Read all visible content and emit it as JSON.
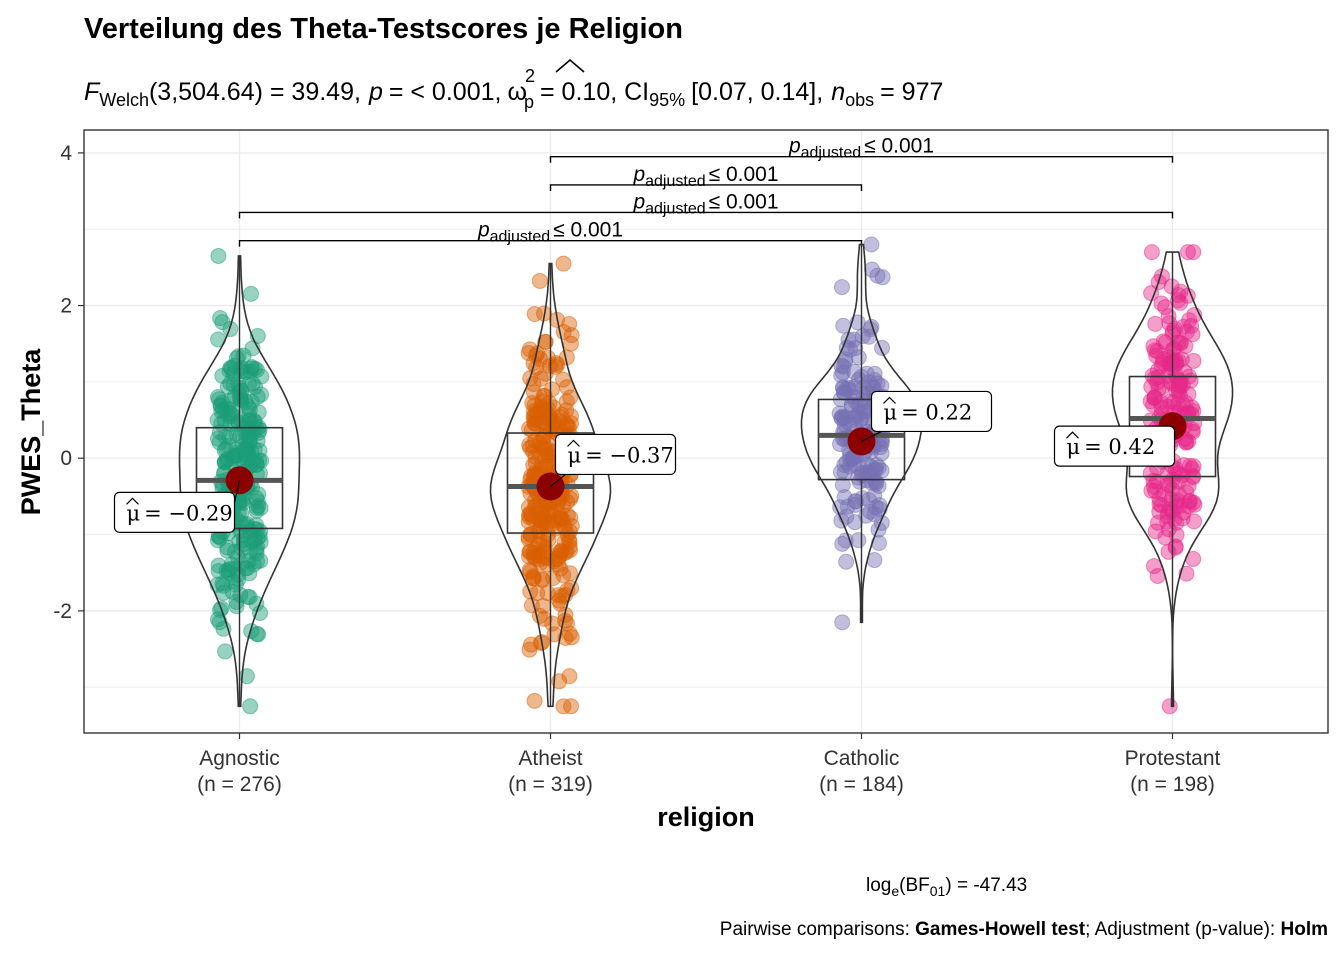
{
  "chart_data": {
    "type": "violin-box-scatter",
    "title": "Verteilung des Theta-Testscores je Religion",
    "subtitle": {
      "test_symbol": "F",
      "test_sub": "Welch",
      "stat": "(3,504.64) = 39.49,",
      "p_symbol": "p",
      "p_text": "= < 0.001,",
      "effect_symbol": "ω",
      "effect_sup": "2",
      "effect_sub": "p",
      "effect_text": "= 0.10, CI",
      "ci_sub": "95%",
      "ci_text": "[0.07, 0.14],",
      "n_symbol": "n",
      "n_sub": "obs",
      "n_text": "= 977"
    },
    "xlabel": "religion",
    "ylabel": "PWES_Theta",
    "ylim": [
      -3.6,
      4.3
    ],
    "yticks": [
      "4",
      "2",
      "0",
      "-2"
    ],
    "yticks_values": [
      4,
      2,
      0,
      -2
    ],
    "grid": true,
    "groups": [
      {
        "name": "Agnostic",
        "n_label": "(n = 276)",
        "color": "#1B9E77",
        "mean": -0.29,
        "mean_label": "= −0.29",
        "q1": -0.92,
        "median": -0.29,
        "q3": 0.4,
        "min": -3.25,
        "max": 2.65
      },
      {
        "name": "Atheist",
        "n_label": "(n = 319)",
        "color": "#D95F02",
        "mean": -0.37,
        "mean_label": "= −0.37",
        "q1": -0.98,
        "median": -0.37,
        "q3": 0.33,
        "min": -3.25,
        "max": 2.55
      },
      {
        "name": "Catholic",
        "n_label": "(n = 184)",
        "color": "#7570B3",
        "mean": 0.22,
        "mean_label": "= 0.22",
        "q1": -0.28,
        "median": 0.3,
        "q3": 0.77,
        "min": -2.15,
        "max": 2.8
      },
      {
        "name": "Protestant",
        "n_label": "(n = 198)",
        "color": "#E7298A",
        "mean": 0.42,
        "mean_label": "= 0.42",
        "q1": -0.24,
        "median": 0.52,
        "q3": 1.07,
        "min": -3.25,
        "max": 2.7
      }
    ],
    "comparisons": [
      {
        "from": "Agnostic",
        "to": "Catholic",
        "p_symbol": "p",
        "p_sub": "adjusted",
        "p_text": "≤ 0.001",
        "y": 2.85
      },
      {
        "from": "Agnostic",
        "to": "Protestant",
        "p_symbol": "p",
        "p_sub": "adjusted",
        "p_text": "≤ 0.001",
        "y": 3.22
      },
      {
        "from": "Atheist",
        "to": "Catholic",
        "p_symbol": "p",
        "p_sub": "adjusted",
        "p_text": "≤ 0.001",
        "y": 3.58
      },
      {
        "from": "Atheist",
        "to": "Protestant",
        "p_symbol": "p",
        "p_sub": "adjusted",
        "p_text": "≤ 0.001",
        "y": 3.95
      }
    ],
    "mean_symbol": "μ",
    "mean_color": "#8B0000",
    "caption_bf": {
      "prefix": "log",
      "prefix_sub": "e",
      "mid": "(BF",
      "mid_sub": "01",
      "suffix": ") = -47.43"
    },
    "caption_pairwise": {
      "part1": "Pairwise comparisons: ",
      "test": "Games-Howell test",
      "part2": "; Adjustment (p-value): ",
      "method": "Holm"
    }
  }
}
